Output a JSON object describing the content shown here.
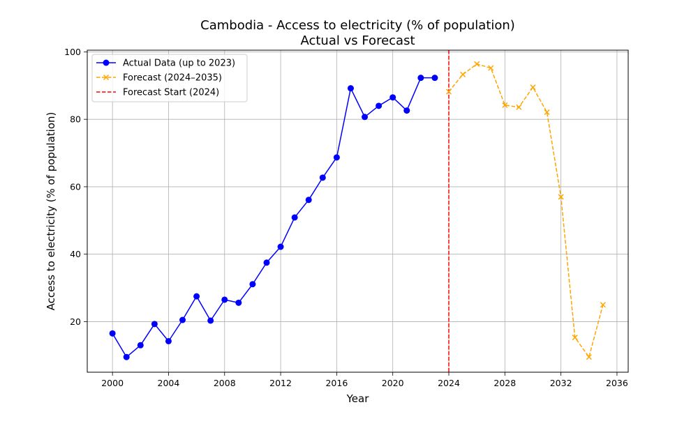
{
  "chart_data": {
    "type": "line",
    "title": "Cambodia - Access to electricity (% of population)",
    "subtitle": "Actual vs Forecast",
    "xlabel": "Year",
    "ylabel": "Access to electricity (% of population)",
    "xlim": [
      1998.2,
      2036.8
    ],
    "ylim": [
      5.0,
      100.5
    ],
    "xticks": [
      2000,
      2004,
      2008,
      2012,
      2016,
      2020,
      2024,
      2028,
      2032,
      2036
    ],
    "yticks": [
      20,
      40,
      60,
      80,
      100
    ],
    "grid": true,
    "legend_position": "top-left",
    "series": [
      {
        "name": "Actual Data (up to 2023)",
        "style": "solid",
        "marker": "circle",
        "color": "#0000ff",
        "x": [
          2000,
          2001,
          2002,
          2003,
          2004,
          2005,
          2006,
          2007,
          2008,
          2009,
          2010,
          2011,
          2012,
          2013,
          2014,
          2015,
          2016,
          2017,
          2018,
          2019,
          2020,
          2021,
          2022,
          2023
        ],
        "y": [
          16.5,
          9.5,
          13.0,
          19.3,
          14.2,
          20.5,
          27.5,
          20.3,
          26.5,
          25.6,
          31.1,
          37.5,
          42.2,
          50.9,
          56.1,
          62.7,
          68.7,
          89.2,
          80.7,
          84.0,
          86.5,
          82.6,
          92.3,
          92.3
        ]
      },
      {
        "name": "Forecast (2024–2035)",
        "style": "dashed",
        "marker": "x",
        "color": "#ffa500",
        "x": [
          2024,
          2025,
          2026,
          2027,
          2028,
          2029,
          2030,
          2031,
          2032,
          2033,
          2034,
          2035
        ],
        "y": [
          88.2,
          93.3,
          96.4,
          95.2,
          84.2,
          83.6,
          89.5,
          82.1,
          57.0,
          15.3,
          9.5,
          25.0
        ]
      }
    ],
    "vlines": [
      {
        "name": "Forecast Start (2024)",
        "x": 2024,
        "style": "dashed",
        "color": "#ff0000"
      }
    ]
  }
}
